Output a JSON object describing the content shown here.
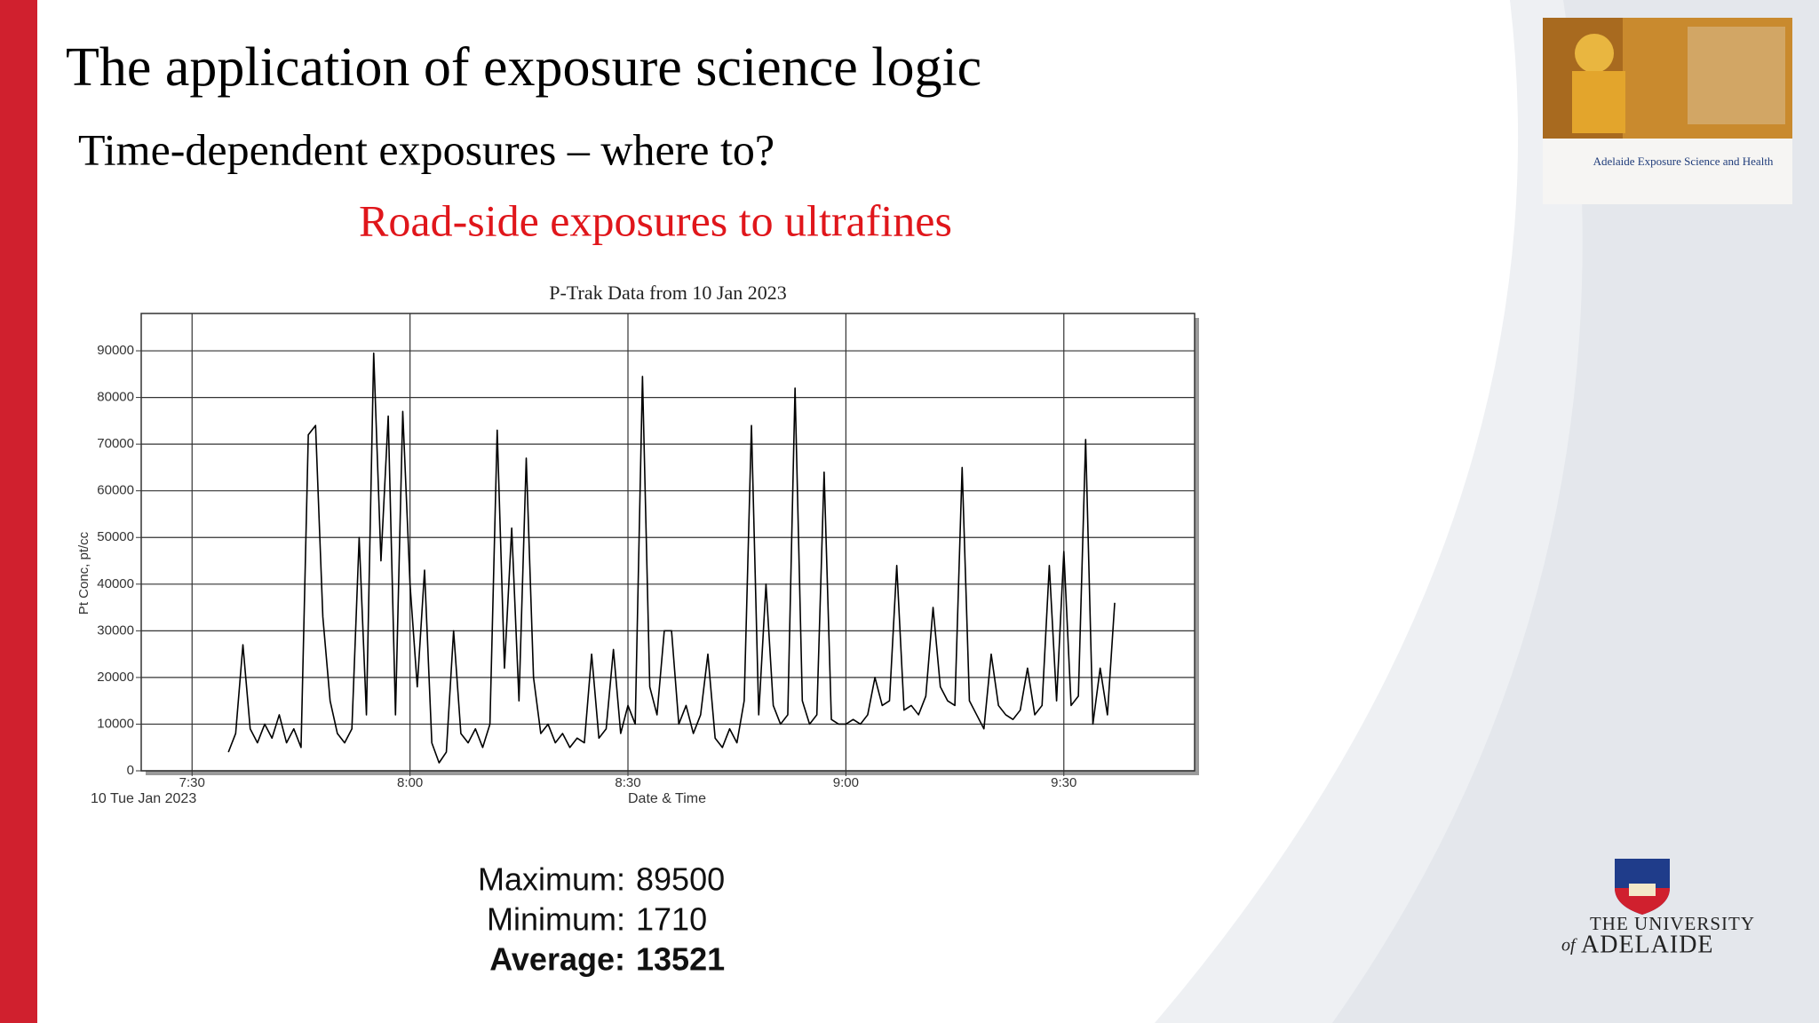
{
  "slide": {
    "title": "The application of exposure science logic",
    "subtitle": "Time-dependent exposures – where to?",
    "heading": "Road-side exposures to ultrafines",
    "stats": [
      {
        "label": "Maximum:",
        "value": 89500
      },
      {
        "label": "Minimum:",
        "value": 1710
      },
      {
        "label": "Average:",
        "value": 13521
      }
    ],
    "thumbnail_caption": "Adelaide Exposure Science and Health",
    "logo": [
      "THE UNIVERSITY",
      "of",
      "ADELAIDE"
    ]
  },
  "chart_data": {
    "type": "line",
    "title": "P-Trak Data from 10 Jan 2023",
    "x_label": "Date & Time",
    "x_sublabel": "10 Tue Jan 2023",
    "y_label": "Pt Conc, pt/cc",
    "color": "#000000",
    "grid": true,
    "xlim": [
      "7:23",
      "9:48"
    ],
    "xticks": [
      "7:30",
      "8:00",
      "8:30",
      "9:00",
      "9:30"
    ],
    "ylim": [
      0,
      98000
    ],
    "yticks": [
      0,
      10000,
      20000,
      30000,
      40000,
      50000,
      60000,
      70000,
      80000,
      90000
    ],
    "x": [
      "7:35",
      "7:36",
      "7:37",
      "7:38",
      "7:39",
      "7:40",
      "7:41",
      "7:42",
      "7:43",
      "7:44",
      "7:45",
      "7:46",
      "7:47",
      "7:48",
      "7:49",
      "7:50",
      "7:51",
      "7:52",
      "7:53",
      "7:54",
      "7:55",
      "7:56",
      "7:57",
      "7:58",
      "7:59",
      "8:00",
      "8:01",
      "8:02",
      "8:03",
      "8:04",
      "8:05",
      "8:06",
      "8:07",
      "8:08",
      "8:09",
      "8:10",
      "8:11",
      "8:12",
      "8:13",
      "8:14",
      "8:15",
      "8:16",
      "8:17",
      "8:18",
      "8:19",
      "8:20",
      "8:21",
      "8:22",
      "8:23",
      "8:24",
      "8:25",
      "8:26",
      "8:27",
      "8:28",
      "8:29",
      "8:30",
      "8:31",
      "8:32",
      "8:33",
      "8:34",
      "8:35",
      "8:36",
      "8:37",
      "8:38",
      "8:39",
      "8:40",
      "8:41",
      "8:42",
      "8:43",
      "8:44",
      "8:45",
      "8:46",
      "8:47",
      "8:48",
      "8:49",
      "8:50",
      "8:51",
      "8:52",
      "8:53",
      "8:54",
      "8:55",
      "8:56",
      "8:57",
      "8:58",
      "8:59",
      "9:00",
      "9:01",
      "9:02",
      "9:03",
      "9:04",
      "9:05",
      "9:06",
      "9:07",
      "9:08",
      "9:09",
      "9:10",
      "9:11",
      "9:12",
      "9:13",
      "9:14",
      "9:15",
      "9:16",
      "9:17",
      "9:18",
      "9:19",
      "9:20",
      "9:21",
      "9:22",
      "9:23",
      "9:24",
      "9:25",
      "9:26",
      "9:27",
      "9:28",
      "9:29",
      "9:30",
      "9:31",
      "9:32",
      "9:33",
      "9:34",
      "9:35",
      "9:36",
      "9:37"
    ],
    "values": [
      4000,
      8000,
      27000,
      9000,
      6000,
      10000,
      7000,
      12000,
      6000,
      9000,
      5000,
      72000,
      74000,
      33000,
      15000,
      8000,
      6000,
      9000,
      50000,
      12000,
      89500,
      45000,
      76000,
      12000,
      77000,
      40000,
      18000,
      43000,
      6000,
      1710,
      4000,
      30000,
      8000,
      6000,
      9000,
      5000,
      10000,
      73000,
      22000,
      52000,
      15000,
      67000,
      20000,
      8000,
      10000,
      6000,
      8000,
      5000,
      7000,
      6000,
      25000,
      7000,
      9000,
      26000,
      8000,
      14000,
      10000,
      84500,
      18000,
      12000,
      30000,
      30000,
      10000,
      14000,
      8000,
      12000,
      25000,
      7000,
      5000,
      9000,
      6000,
      15000,
      74000,
      12000,
      40000,
      14000,
      10000,
      12000,
      82000,
      15000,
      10000,
      12000,
      64000,
      11000,
      10000,
      10000,
      11000,
      10000,
      12000,
      20000,
      14000,
      15000,
      44000,
      13000,
      14000,
      12000,
      16000,
      35000,
      18000,
      15000,
      14000,
      65000,
      15000,
      12000,
      9000,
      25000,
      14000,
      12000,
      11000,
      13000,
      22000,
      12000,
      14000,
      44000,
      15000,
      47000,
      14000,
      16000,
      71000,
      10000,
      22000,
      12000,
      36000
    ]
  }
}
